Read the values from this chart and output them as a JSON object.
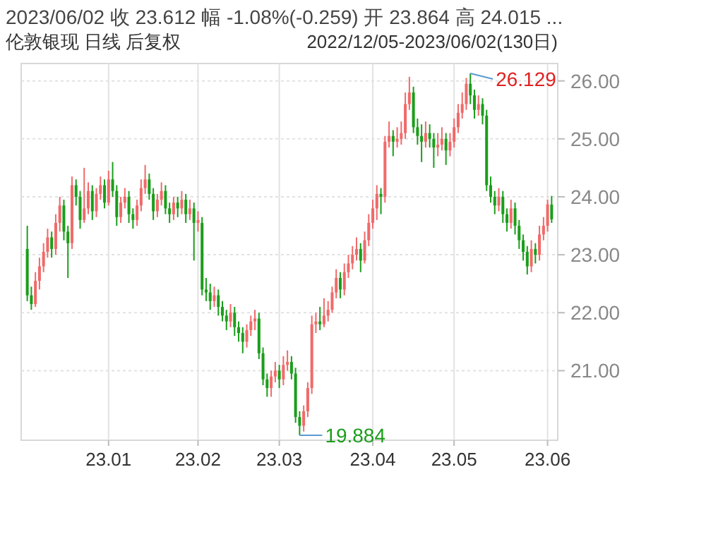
{
  "chart_data": {
    "type": "candlestick",
    "title": "2023/06/02  收 23.612  幅 -1.08%(-0.259)  开 23.864  高 24.015 ...",
    "subtitle": "伦敦银现 日线 后复权",
    "annotations": [
      "2022/12/05-2023/06/02(130日)",
      "26.129",
      "19.884"
    ],
    "categories": [
      null,
      null,
      null,
      null,
      null,
      null,
      null,
      null,
      null,
      null,
      null,
      null,
      null,
      null,
      null,
      null,
      null,
      null,
      null,
      null,
      "23.01",
      null,
      null,
      null,
      null,
      null,
      null,
      null,
      null,
      null,
      null,
      null,
      null,
      null,
      null,
      null,
      null,
      null,
      null,
      null,
      null,
      null,
      "23.02",
      null,
      null,
      null,
      null,
      null,
      null,
      null,
      null,
      null,
      null,
      null,
      null,
      null,
      null,
      null,
      null,
      null,
      null,
      null,
      "23.03",
      null,
      null,
      null,
      null,
      null,
      null,
      null,
      null,
      null,
      null,
      null,
      null,
      null,
      null,
      null,
      null,
      null,
      null,
      null,
      null,
      null,
      null,
      "23.04",
      null,
      null,
      null,
      null,
      null,
      null,
      null,
      null,
      null,
      null,
      null,
      null,
      null,
      null,
      null,
      null,
      null,
      null,
      null,
      "23.05",
      null,
      null,
      null,
      null,
      null,
      null,
      null,
      null,
      null,
      null,
      null,
      null,
      null,
      null,
      null,
      null,
      null,
      null,
      null,
      null,
      null,
      null,
      "23.06",
      null
    ],
    "ylim": [
      19.8,
      26.3
    ],
    "yticks": [
      {
        "value": 21,
        "label": "21.00"
      },
      {
        "value": 22,
        "label": "22.00"
      },
      {
        "value": 23,
        "label": "23.00"
      },
      {
        "value": 24,
        "label": "24.00"
      },
      {
        "value": 25,
        "label": "25.00"
      },
      {
        "value": 26,
        "label": "26.00"
      }
    ],
    "grid": true,
    "ohlc": [
      [
        23.1,
        23.5,
        22.2,
        22.3
      ],
      [
        22.3,
        22.45,
        22.05,
        22.15
      ],
      [
        22.15,
        22.7,
        22.1,
        22.55
      ],
      [
        22.55,
        22.95,
        22.4,
        22.8
      ],
      [
        22.8,
        23.2,
        22.7,
        23.05
      ],
      [
        23.05,
        23.45,
        22.95,
        23.3
      ],
      [
        23.3,
        23.4,
        22.95,
        23.1
      ],
      [
        23.1,
        23.7,
        23.0,
        23.55
      ],
      [
        23.55,
        24.0,
        23.4,
        23.85
      ],
      [
        23.85,
        23.95,
        23.25,
        23.4
      ],
      [
        23.4,
        23.5,
        22.6,
        23.2
      ],
      [
        23.2,
        24.35,
        23.1,
        24.2
      ],
      [
        24.2,
        24.3,
        23.85,
        24.0
      ],
      [
        24.0,
        24.1,
        23.45,
        23.6
      ],
      [
        23.6,
        24.5,
        23.55,
        23.8
      ],
      [
        23.8,
        24.25,
        23.7,
        24.1
      ],
      [
        24.1,
        24.2,
        23.6,
        23.75
      ],
      [
        23.75,
        24.15,
        23.65,
        24.05
      ],
      [
        24.05,
        24.35,
        23.95,
        24.2
      ],
      [
        24.2,
        24.3,
        23.8,
        23.9
      ],
      [
        23.9,
        24.45,
        23.85,
        24.3
      ],
      [
        24.3,
        24.6,
        24.0,
        24.1
      ],
      [
        24.1,
        24.2,
        23.5,
        23.65
      ],
      [
        23.65,
        24.0,
        23.55,
        23.9
      ],
      [
        23.9,
        24.15,
        23.8,
        24.0
      ],
      [
        24.0,
        24.1,
        23.55,
        23.7
      ],
      [
        23.7,
        23.8,
        23.45,
        23.6
      ],
      [
        23.6,
        23.95,
        23.5,
        23.85
      ],
      [
        23.85,
        24.3,
        23.75,
        24.15
      ],
      [
        24.15,
        24.55,
        24.05,
        24.3
      ],
      [
        24.3,
        24.4,
        23.95,
        24.05
      ],
      [
        24.05,
        24.15,
        23.6,
        23.75
      ],
      [
        23.75,
        24.05,
        23.65,
        23.95
      ],
      [
        23.95,
        24.25,
        23.85,
        24.1
      ],
      [
        24.1,
        24.2,
        23.7,
        23.8
      ],
      [
        23.8,
        23.9,
        23.55,
        23.7
      ],
      [
        23.7,
        24.0,
        23.6,
        23.9
      ],
      [
        23.9,
        24.0,
        23.65,
        23.8
      ],
      [
        23.8,
        24.1,
        23.7,
        23.95
      ],
      [
        23.95,
        24.05,
        23.55,
        23.7
      ],
      [
        23.7,
        23.95,
        23.6,
        23.8
      ],
      [
        23.8,
        23.9,
        22.9,
        23.55
      ],
      [
        23.55,
        23.75,
        23.4,
        23.6
      ],
      [
        23.55,
        23.65,
        22.3,
        22.4
      ],
      [
        22.4,
        22.6,
        22.2,
        22.35
      ],
      [
        22.35,
        22.5,
        22.05,
        22.2
      ],
      [
        22.2,
        22.45,
        22.1,
        22.3
      ],
      [
        22.3,
        22.4,
        21.95,
        22.1
      ],
      [
        22.1,
        22.2,
        21.85,
        21.95
      ],
      [
        21.95,
        22.05,
        21.7,
        21.85
      ],
      [
        21.85,
        22.15,
        21.75,
        22.0
      ],
      [
        22.0,
        22.1,
        21.6,
        21.75
      ],
      [
        21.75,
        21.85,
        21.5,
        21.65
      ],
      [
        21.65,
        21.75,
        21.3,
        21.5
      ],
      [
        21.5,
        21.8,
        21.4,
        21.7
      ],
      [
        21.7,
        21.95,
        21.6,
        21.85
      ],
      [
        21.85,
        22.05,
        21.7,
        21.9
      ],
      [
        21.9,
        22.0,
        21.2,
        21.3
      ],
      [
        21.3,
        21.4,
        20.75,
        20.85
      ],
      [
        20.85,
        20.95,
        20.55,
        20.7
      ],
      [
        20.7,
        21.0,
        20.55,
        20.9
      ],
      [
        20.9,
        21.15,
        20.8,
        21.0
      ],
      [
        21.0,
        21.1,
        20.7,
        20.85
      ],
      [
        20.85,
        21.25,
        20.75,
        21.1
      ],
      [
        21.1,
        21.35,
        21.0,
        21.15
      ],
      [
        21.15,
        21.25,
        20.85,
        20.95
      ],
      [
        20.95,
        21.05,
        20.1,
        20.2
      ],
      [
        20.2,
        20.3,
        19.884,
        20.05
      ],
      [
        20.05,
        20.4,
        19.95,
        20.3
      ],
      [
        20.3,
        20.8,
        20.2,
        20.7
      ],
      [
        20.7,
        21.95,
        20.6,
        21.8
      ],
      [
        21.8,
        22.0,
        21.65,
        21.85
      ],
      [
        21.85,
        22.1,
        21.7,
        21.8
      ],
      [
        21.8,
        22.25,
        21.75,
        21.95
      ],
      [
        21.95,
        22.2,
        21.85,
        22.05
      ],
      [
        22.05,
        22.45,
        22.0,
        22.35
      ],
      [
        22.35,
        22.75,
        22.25,
        22.6
      ],
      [
        22.6,
        22.7,
        22.25,
        22.4
      ],
      [
        22.4,
        22.85,
        22.3,
        22.7
      ],
      [
        22.7,
        23.0,
        22.6,
        22.85
      ],
      [
        22.85,
        23.15,
        22.75,
        23.0
      ],
      [
        23.0,
        23.3,
        22.9,
        23.1
      ],
      [
        23.1,
        23.2,
        22.7,
        22.9
      ],
      [
        22.9,
        23.4,
        22.85,
        23.25
      ],
      [
        23.25,
        23.7,
        23.15,
        23.55
      ],
      [
        23.55,
        23.95,
        23.45,
        23.8
      ],
      [
        23.8,
        24.2,
        23.6,
        24.05
      ],
      [
        24.05,
        24.15,
        23.7,
        24.0
      ],
      [
        24.0,
        25.05,
        23.9,
        24.95
      ],
      [
        24.95,
        25.3,
        24.85,
        25.05
      ],
      [
        25.05,
        25.15,
        24.7,
        24.95
      ],
      [
        24.95,
        25.2,
        24.85,
        25.0
      ],
      [
        25.0,
        25.3,
        24.9,
        25.1
      ],
      [
        25.1,
        25.8,
        25.0,
        25.6
      ],
      [
        25.6,
        26.07,
        25.5,
        25.8
      ],
      [
        25.8,
        25.9,
        25.1,
        25.2
      ],
      [
        25.2,
        25.35,
        24.9,
        25.05
      ],
      [
        25.05,
        25.25,
        24.6,
        24.95
      ],
      [
        24.95,
        25.3,
        24.85,
        25.1
      ],
      [
        25.1,
        25.25,
        24.85,
        25.0
      ],
      [
        25.0,
        25.1,
        24.5,
        24.85
      ],
      [
        24.85,
        25.1,
        24.7,
        24.9
      ],
      [
        24.9,
        25.2,
        24.8,
        25.0
      ],
      [
        25.0,
        25.1,
        24.55,
        24.8
      ],
      [
        24.8,
        25.1,
        24.7,
        24.95
      ],
      [
        24.95,
        25.35,
        24.85,
        25.2
      ],
      [
        25.2,
        25.6,
        25.1,
        25.45
      ],
      [
        25.45,
        25.8,
        25.35,
        25.6
      ],
      [
        25.6,
        26.05,
        25.5,
        25.95
      ],
      [
        25.95,
        26.129,
        25.6,
        25.75
      ],
      [
        25.75,
        25.85,
        25.35,
        25.5
      ],
      [
        25.5,
        25.75,
        25.4,
        25.6
      ],
      [
        25.6,
        25.7,
        25.25,
        25.4
      ],
      [
        25.4,
        25.5,
        24.1,
        24.2
      ],
      [
        24.2,
        24.35,
        23.9,
        24.0
      ],
      [
        24.0,
        24.1,
        23.7,
        23.85
      ],
      [
        23.85,
        24.15,
        23.75,
        24.0
      ],
      [
        24.0,
        24.1,
        23.55,
        23.7
      ],
      [
        23.7,
        23.8,
        23.4,
        23.55
      ],
      [
        23.55,
        23.95,
        23.45,
        23.8
      ],
      [
        23.8,
        23.9,
        23.35,
        23.5
      ],
      [
        23.5,
        23.6,
        23.1,
        23.25
      ],
      [
        23.25,
        23.35,
        22.9,
        23.05
      ],
      [
        23.05,
        23.15,
        22.66,
        22.8
      ],
      [
        22.8,
        23.25,
        22.7,
        23.1
      ],
      [
        23.1,
        23.2,
        22.85,
        23.0
      ],
      [
        23.0,
        23.5,
        22.9,
        23.35
      ],
      [
        23.35,
        23.65,
        23.25,
        23.5
      ],
      [
        23.5,
        23.95,
        23.4,
        23.87
      ],
      [
        23.864,
        24.015,
        23.55,
        23.612
      ]
    ]
  }
}
